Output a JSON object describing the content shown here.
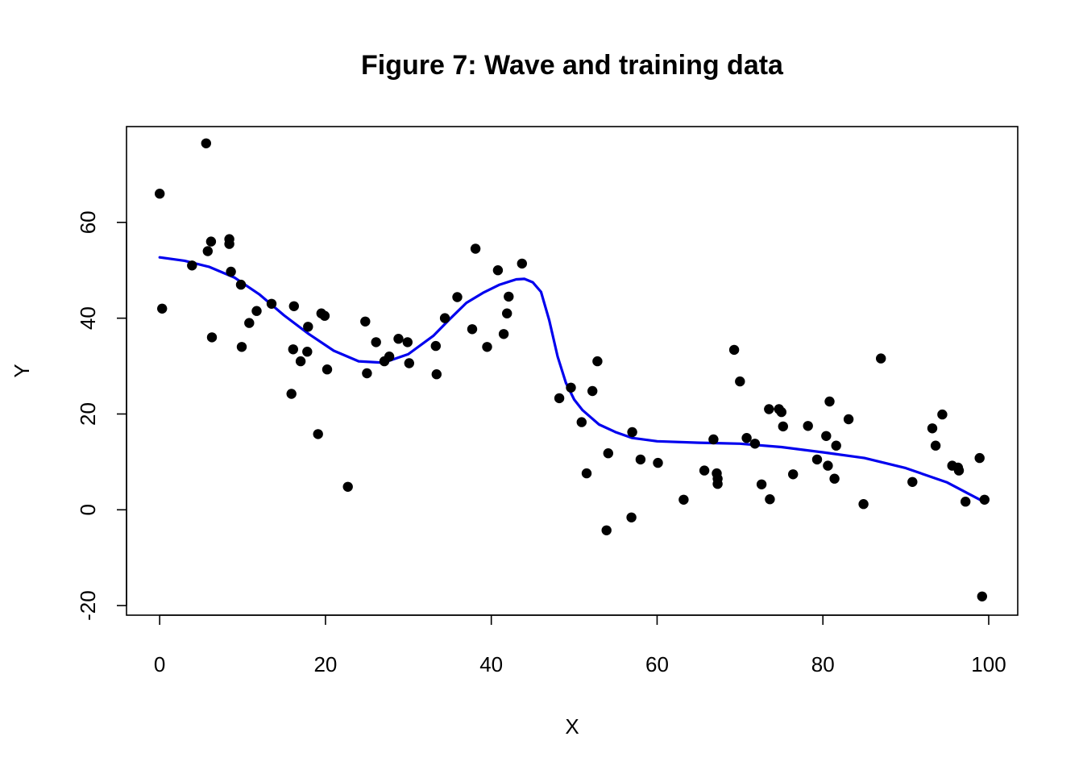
{
  "chart_data": {
    "type": "scatter",
    "title": "Figure 7: Wave and training data",
    "xlabel": "X",
    "ylabel": "Y",
    "xlim": [
      -4,
      103.5
    ],
    "ylim": [
      -22,
      80
    ],
    "x_ticks": [
      0,
      20,
      40,
      60,
      80,
      100
    ],
    "y_ticks": [
      -20,
      0,
      20,
      40,
      60
    ],
    "x_tick_labels": [
      "0",
      "20",
      "40",
      "60",
      "80",
      "100"
    ],
    "y_tick_labels": [
      "-20",
      "0",
      "20",
      "40",
      "60"
    ],
    "grid": false,
    "colors": {
      "points": "#000000",
      "curve": "#0000ee"
    },
    "series": [
      {
        "kind": "points",
        "x": [
          0,
          0.3,
          3.9,
          5.6,
          5.8,
          6.2,
          6.3,
          8.4,
          8.4,
          8.6,
          9.8,
          9.9,
          10.8,
          11.7,
          13.5,
          15.9,
          16.1,
          16.2,
          17.0,
          17.8,
          17.9,
          19.1,
          19.5,
          19.9,
          20.2,
          22.7,
          24.8,
          25.0,
          26.1,
          27.1,
          27.7,
          28.8,
          29.9,
          30.1,
          33.3,
          33.4,
          34.4,
          35.9,
          37.7,
          38.1,
          39.5,
          40.8,
          41.5,
          41.9,
          42.1,
          43.7,
          48.2,
          49.6,
          50.9,
          51.5,
          52.2,
          52.8,
          53.9,
          54.1,
          56.9,
          57.0,
          58.0,
          60.1,
          63.2,
          65.7,
          66.8,
          67.2,
          67.3,
          67.3,
          69.3,
          70.0,
          70.8,
          71.8,
          72.6,
          73.5,
          73.6,
          74.7,
          75.0,
          75.2,
          76.4,
          78.2,
          79.3,
          80.4,
          80.6,
          80.8,
          81.4,
          81.6,
          83.1,
          84.9,
          87.0,
          90.8,
          93.2,
          93.6,
          94.4,
          95.6,
          96.3,
          96.4,
          97.2,
          98.9,
          99.2,
          99.5
        ],
        "y": [
          66,
          42,
          51,
          76.5,
          54,
          56,
          36,
          56.5,
          55.5,
          49.7,
          47,
          34,
          39,
          41.5,
          43,
          24.2,
          33.5,
          42.5,
          31,
          33,
          38.2,
          15.8,
          41,
          40.5,
          29.3,
          4.8,
          39.3,
          28.5,
          35,
          31,
          32,
          35.7,
          35,
          30.6,
          34.2,
          28.3,
          40,
          44.4,
          37.7,
          54.5,
          34,
          50,
          36.7,
          41,
          44.5,
          51.4,
          23.3,
          25.5,
          18.3,
          7.6,
          24.8,
          31,
          -4.3,
          11.8,
          -1.6,
          16.2,
          10.5,
          9.8,
          2.1,
          8.2,
          14.7,
          7.6,
          6.5,
          5.4,
          33.4,
          26.8,
          15,
          13.8,
          5.3,
          21,
          2.2,
          21,
          20.4,
          17.4,
          7.4,
          17.5,
          10.5,
          15.4,
          9.2,
          22.6,
          6.5,
          13.4,
          18.9,
          1.2,
          31.6,
          5.8,
          17,
          13.4,
          19.9,
          9.2,
          8.8,
          8.2,
          1.7,
          10.8,
          -18.1,
          2.1
        ]
      },
      {
        "kind": "curve",
        "x": [
          0,
          3,
          6,
          9,
          12,
          15,
          18,
          21,
          24,
          27,
          30,
          33,
          35,
          37,
          39,
          41,
          43,
          44,
          45,
          46,
          47,
          48,
          49,
          50,
          51,
          52,
          53,
          55,
          57,
          60,
          65,
          70,
          75,
          80,
          85,
          90,
          95,
          99.5
        ],
        "y": [
          52.7,
          52,
          50.7,
          48.5,
          45,
          40.6,
          36.7,
          33.2,
          31,
          30.7,
          32.5,
          36.3,
          39.8,
          43.2,
          45.3,
          47,
          48.1,
          48.2,
          47.5,
          45.5,
          39.5,
          32,
          26.5,
          23,
          20.8,
          19.3,
          17.8,
          16.2,
          15,
          14.3,
          14,
          13.8,
          13.1,
          12,
          10.8,
          8.7,
          5.7,
          1.6
        ]
      }
    ]
  }
}
